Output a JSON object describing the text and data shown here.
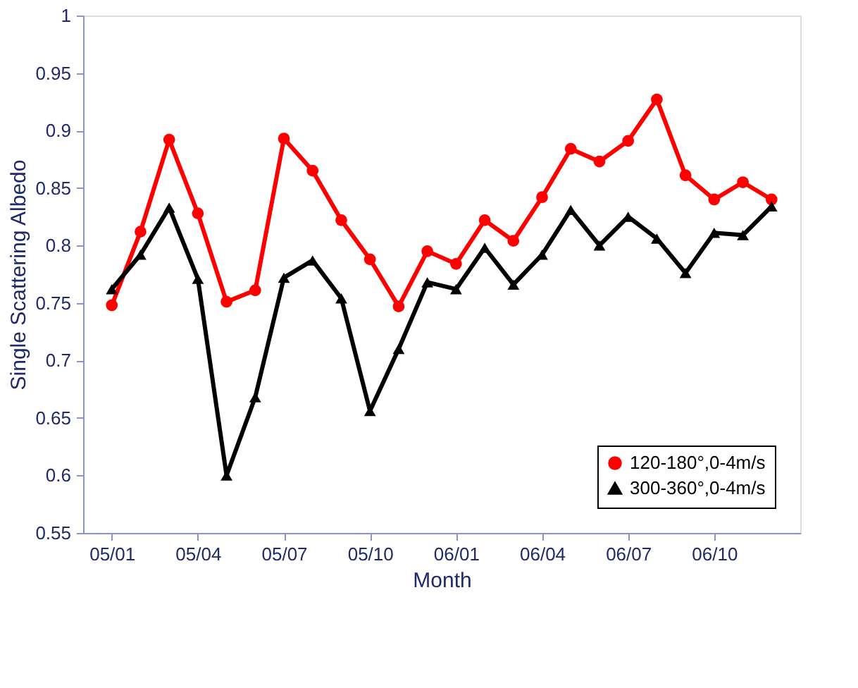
{
  "chart_data": {
    "type": "line",
    "xlabel": "Month",
    "ylabel": "Single Scattering Albedo",
    "categories": [
      "05/01",
      null,
      null,
      "05/04",
      null,
      null,
      "05/07",
      null,
      null,
      "05/10",
      null,
      null,
      "06/01",
      null,
      null,
      "06/04",
      null,
      null,
      "06/07",
      null,
      null,
      "06/10",
      null,
      null
    ],
    "series": [
      {
        "name": "120-180°,0-4m/s",
        "color": "#ff0000",
        "marker": "circle",
        "values": [
          0.748,
          0.812,
          0.892,
          0.828,
          0.751,
          0.761,
          0.893,
          0.865,
          0.822,
          0.788,
          0.747,
          0.795,
          0.784,
          0.822,
          0.804,
          0.842,
          0.884,
          0.873,
          0.891,
          0.927,
          0.861,
          0.84,
          0.855,
          0.84
        ]
      },
      {
        "name": "300-360°,0-4m/s",
        "color": "#000000",
        "marker": "triangle",
        "values": [
          0.762,
          0.792,
          0.833,
          0.771,
          0.6,
          0.668,
          0.772,
          0.787,
          0.754,
          0.656,
          0.71,
          0.768,
          0.762,
          0.798,
          0.766,
          0.792,
          0.831,
          0.8,
          0.825,
          0.806,
          0.776,
          0.811,
          0.809,
          0.834
        ]
      }
    ],
    "ylim": [
      0.55,
      1
    ],
    "yticks": [
      0.55,
      0.6,
      0.65,
      0.7,
      0.75,
      0.8,
      0.85,
      0.9,
      0.95,
      1
    ],
    "grid": false,
    "legend": "bottom right"
  }
}
